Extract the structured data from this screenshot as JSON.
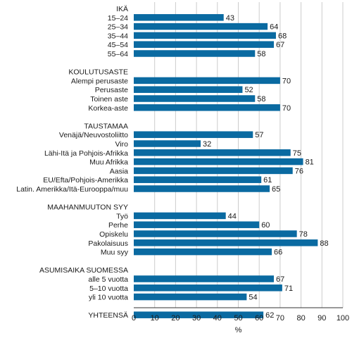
{
  "chart_data": {
    "type": "bar",
    "orientation": "horizontal",
    "xlabel": "%",
    "xlim": [
      0,
      100
    ],
    "xticks": [
      0,
      10,
      20,
      30,
      40,
      50,
      60,
      70,
      80,
      90,
      100
    ],
    "grid": true,
    "bar_color": "#0a6aa1",
    "groups": [
      {
        "heading": "IKÄ",
        "items": [
          {
            "label": "15–24",
            "value": 43
          },
          {
            "label": "25–34",
            "value": 64
          },
          {
            "label": "35–44",
            "value": 68
          },
          {
            "label": "45–54",
            "value": 67
          },
          {
            "label": "55–64",
            "value": 58
          }
        ]
      },
      {
        "heading": "KOULUTUSASTE",
        "items": [
          {
            "label": "Alempi perusaste",
            "value": 70
          },
          {
            "label": "Perusaste",
            "value": 52
          },
          {
            "label": "Toinen aste",
            "value": 58
          },
          {
            "label": "Korkea-aste",
            "value": 70
          }
        ]
      },
      {
        "heading": "TAUSTAMAA",
        "items": [
          {
            "label": "Venäjä/Neuvostoliitto",
            "value": 57
          },
          {
            "label": "Viro",
            "value": 32
          },
          {
            "label": "Lähi-Itä ja Pohjois-Afrikka",
            "value": 75
          },
          {
            "label": "Muu Afrikka",
            "value": 81
          },
          {
            "label": "Aasia",
            "value": 76
          },
          {
            "label": "EU/Efta/Pohjois-Amerikka",
            "value": 61
          },
          {
            "label": "Latin. Amerikka/Itä-Eurooppa/muu",
            "value": 65
          }
        ]
      },
      {
        "heading": "MAAHANMUUTON SYY",
        "items": [
          {
            "label": "Työ",
            "value": 44
          },
          {
            "label": "Perhe",
            "value": 60
          },
          {
            "label": "Opiskelu",
            "value": 78
          },
          {
            "label": "Pakolaisuus",
            "value": 88
          },
          {
            "label": "Muu syy",
            "value": 66
          }
        ]
      },
      {
        "heading": "ASUMISAIKA SUOMESSA",
        "items": [
          {
            "label": "alle 5 vuotta",
            "value": 67
          },
          {
            "label": "5–10 vuotta",
            "value": 71
          },
          {
            "label": "yli 10 vuotta",
            "value": 54
          }
        ]
      },
      {
        "heading": "",
        "items": [
          {
            "label": "YHTEENSÄ",
            "value": 62
          }
        ]
      }
    ]
  }
}
